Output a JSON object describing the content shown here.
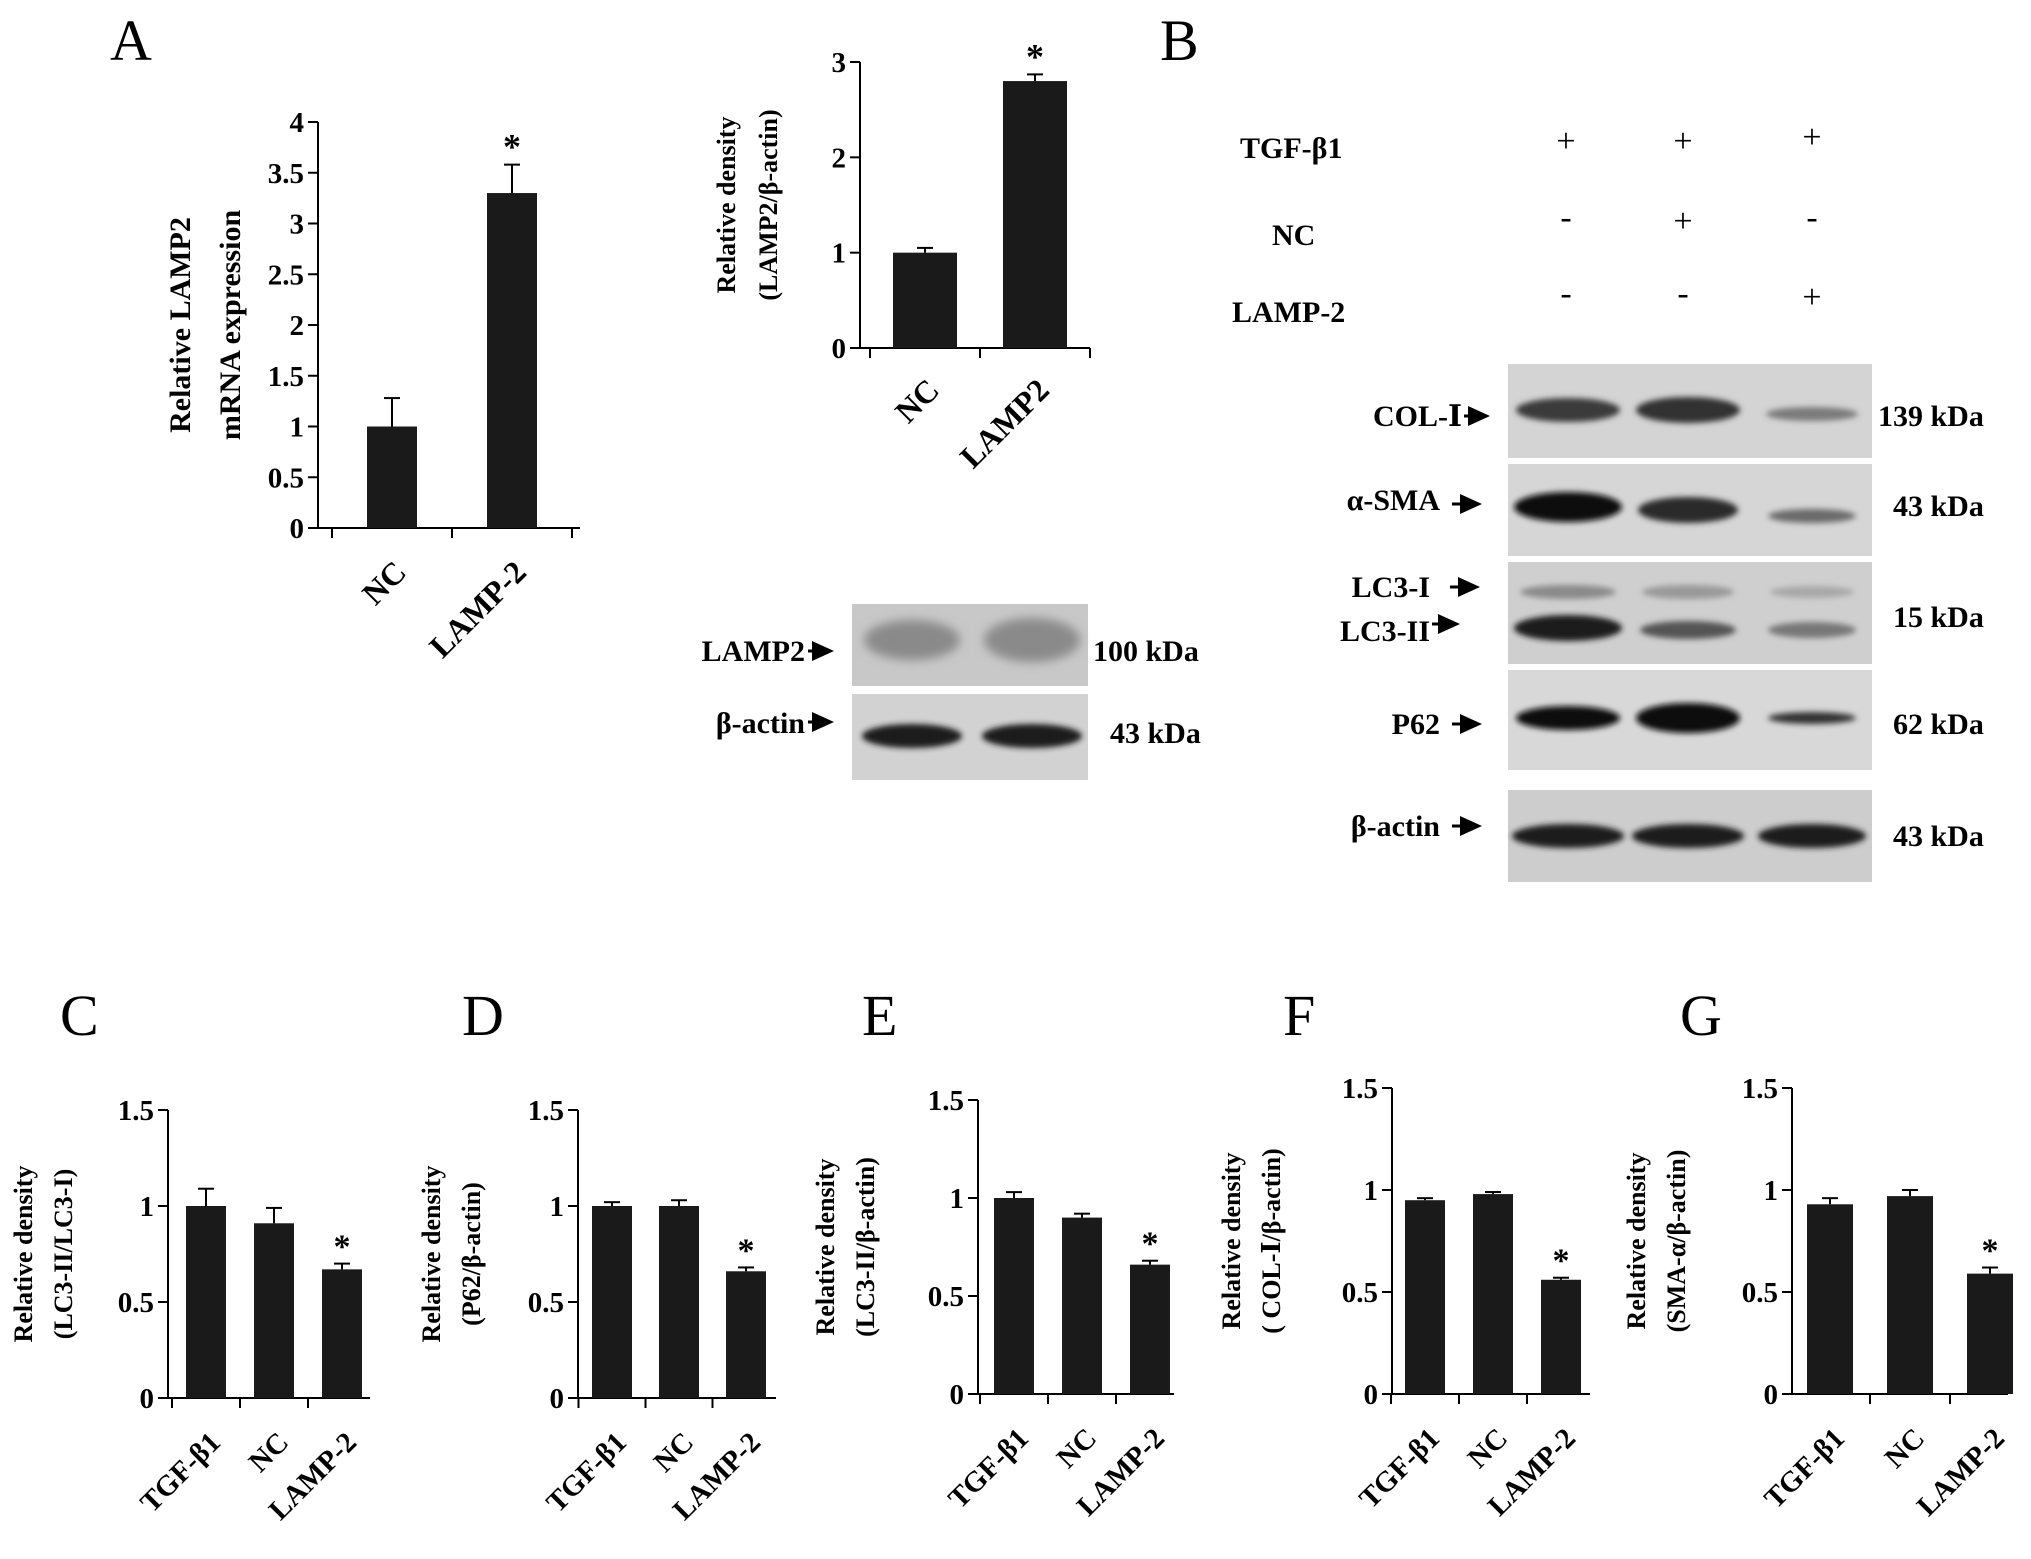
{
  "panels": {
    "A": "A",
    "B": "B",
    "C": "C",
    "D": "D",
    "E": "E",
    "F": "F",
    "G": "G"
  },
  "chart_data": [
    {
      "id": "A_mrna",
      "type": "bar",
      "categories": [
        "NC",
        "LAMP-2"
      ],
      "values": [
        1.0,
        3.3
      ],
      "errors": [
        0.28,
        0.28
      ],
      "significance": [
        "",
        "*"
      ],
      "ylabel": [
        "Relative LAMP2",
        "mRNA expression"
      ],
      "ylim": [
        0,
        4
      ],
      "yticks": [
        0,
        0.5,
        1,
        1.5,
        2,
        2.5,
        3,
        3.5,
        4
      ],
      "yticklabels": [
        "0",
        "0.5",
        "1",
        "1.5",
        "2",
        "2.5",
        "3",
        "3.5",
        "4"
      ]
    },
    {
      "id": "A_density",
      "type": "bar",
      "categories": [
        "NC",
        "LAMP2"
      ],
      "values": [
        1.0,
        2.8
      ],
      "errors": [
        0.05,
        0.07
      ],
      "significance": [
        "",
        "*"
      ],
      "ylabel": [
        "Relative density",
        "(LAMP2/β-actin)"
      ],
      "ylim": [
        0,
        3
      ],
      "yticks": [
        0,
        1,
        2,
        3
      ],
      "yticklabels": [
        "0",
        "1",
        "2",
        "3"
      ]
    },
    {
      "id": "C",
      "type": "bar",
      "categories": [
        "TGF-β1",
        "NC",
        "LAMP-2"
      ],
      "values": [
        1.0,
        0.91,
        0.67
      ],
      "errors": [
        0.09,
        0.08,
        0.03
      ],
      "significance": [
        "",
        "",
        "*"
      ],
      "ylabel": [
        "Relative density",
        "(LC3-II/LC3-I)"
      ],
      "ylim": [
        0,
        1.5
      ],
      "yticks": [
        0,
        0.5,
        1,
        1.5
      ],
      "yticklabels": [
        "0",
        "0.5",
        "1",
        "1.5"
      ]
    },
    {
      "id": "D",
      "type": "bar",
      "categories": [
        "TGF-β1",
        "NC",
        "LAMP-2"
      ],
      "values": [
        1.0,
        1.0,
        0.66
      ],
      "errors": [
        0.02,
        0.03,
        0.02
      ],
      "significance": [
        "",
        "",
        "*"
      ],
      "ylabel": [
        "Relative density",
        "(P62/β-actin)"
      ],
      "ylim": [
        0,
        1.5
      ],
      "yticks": [
        0,
        0.5,
        1,
        1.5
      ],
      "yticklabels": [
        "0",
        "0.5",
        "1",
        "1.5"
      ]
    },
    {
      "id": "E",
      "type": "bar",
      "categories": [
        "TGF-β1",
        "NC",
        "LAMP-2"
      ],
      "values": [
        1.0,
        0.9,
        0.66
      ],
      "errors": [
        0.03,
        0.02,
        0.02
      ],
      "significance": [
        "",
        "",
        "*"
      ],
      "ylabel": [
        "Relative density",
        "(LC3-II/β-actin)"
      ],
      "ylim": [
        0,
        1.5
      ],
      "yticks": [
        0,
        0.5,
        1,
        1.5
      ],
      "yticklabels": [
        "0",
        "0.5",
        "1",
        "1.5"
      ]
    },
    {
      "id": "F",
      "type": "bar",
      "categories": [
        "TGF-β1",
        "NC",
        "LAMP-2"
      ],
      "values": [
        0.95,
        0.98,
        0.56
      ],
      "errors": [
        0.01,
        0.01,
        0.01
      ],
      "significance": [
        "",
        "",
        "*"
      ],
      "ylabel": [
        "Relative density",
        "( COL-Ⅰ/β-actin)"
      ],
      "ylim": [
        0,
        1.5
      ],
      "yticks": [
        0,
        0.5,
        1,
        1.5
      ],
      "yticklabels": [
        "0",
        "0.5",
        "1",
        "1.5"
      ]
    },
    {
      "id": "G",
      "type": "bar",
      "categories": [
        "TGF-β1",
        "NC",
        "LAMP-2"
      ],
      "values": [
        0.93,
        0.97,
        0.59
      ],
      "errors": [
        0.03,
        0.03,
        0.03
      ],
      "significance": [
        "",
        "",
        "*"
      ],
      "ylabel": [
        "Relative density",
        "(SMA-α/β-actin)"
      ],
      "ylim": [
        0,
        1.5
      ],
      "yticks": [
        0,
        0.5,
        1,
        1.5
      ],
      "yticklabels": [
        "0",
        "0.5",
        "1",
        "1.5"
      ]
    }
  ],
  "blot_A": {
    "rows": [
      {
        "label": "LAMP2",
        "kda": "100 kDa"
      },
      {
        "label": "β-actin",
        "kda": "43 kDa"
      }
    ]
  },
  "blot_B": {
    "conditions": [
      {
        "label": "TGF-β1",
        "marks": [
          "+",
          "+",
          "+"
        ]
      },
      {
        "label": "NC",
        "marks": [
          "-",
          "+",
          "-"
        ]
      },
      {
        "label": "LAMP-2",
        "marks": [
          "-",
          "-",
          "+"
        ]
      }
    ],
    "rows": [
      {
        "labels": [
          "COL-Ⅰ"
        ],
        "kda": "139 kDa"
      },
      {
        "labels": [
          "α-SMA"
        ],
        "kda": "43 kDa"
      },
      {
        "labels": [
          "LC3-I",
          "LC3-II"
        ],
        "kda": "15 kDa"
      },
      {
        "labels": [
          "P62"
        ],
        "kda": "62 kDa"
      },
      {
        "labels": [
          "β-actin"
        ],
        "kda": "43 kDa"
      }
    ]
  }
}
